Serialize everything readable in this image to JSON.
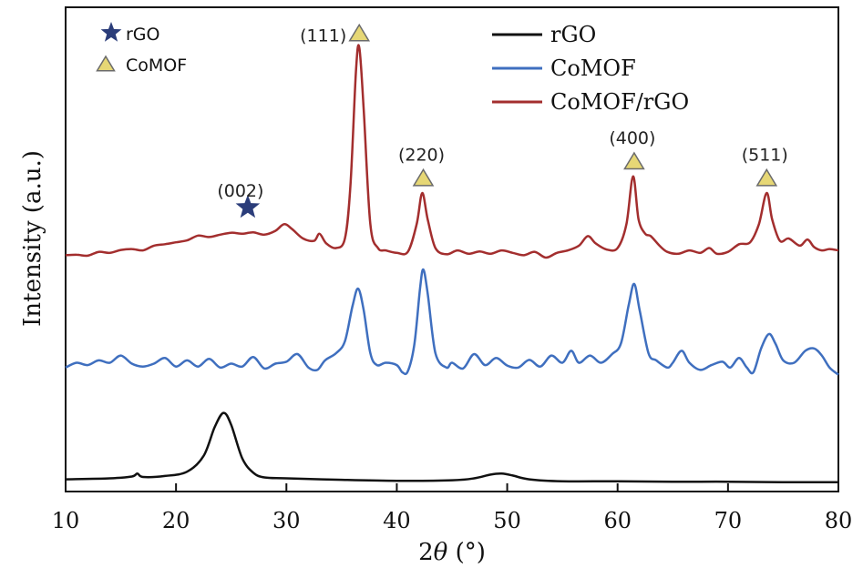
{
  "chart_data": {
    "type": "line",
    "title": "",
    "xlabel_prefix": "2",
    "xlabel_theta": "θ",
    "xlabel_suffix": " (°)",
    "ylabel": "Intensity (a.u.)",
    "xlim": [
      10,
      80
    ],
    "ylim": [
      0,
      100
    ],
    "x_ticks": [
      10,
      20,
      30,
      40,
      50,
      60,
      70,
      80
    ],
    "series": [
      {
        "name": "rGO",
        "color": "#111111",
        "points": [
          [
            10,
            1.6
          ],
          [
            14,
            1.8
          ],
          [
            16,
            2.2
          ],
          [
            16.5,
            2.8
          ],
          [
            17,
            2.1
          ],
          [
            19,
            2.3
          ],
          [
            21,
            3.2
          ],
          [
            22.5,
            6.5
          ],
          [
            23.5,
            12.5
          ],
          [
            24.3,
            15.5
          ],
          [
            25,
            13
          ],
          [
            26,
            6
          ],
          [
            27,
            3
          ],
          [
            28,
            2
          ],
          [
            30,
            1.8
          ],
          [
            35,
            1.5
          ],
          [
            40,
            1.3
          ],
          [
            45,
            1.4
          ],
          [
            47,
            1.8
          ],
          [
            48.5,
            2.6
          ],
          [
            49.5,
            2.8
          ],
          [
            50.5,
            2.4
          ],
          [
            52,
            1.6
          ],
          [
            55,
            1.2
          ],
          [
            60,
            1.2
          ],
          [
            65,
            1.1
          ],
          [
            70,
            1.1
          ],
          [
            75,
            1.0
          ],
          [
            80,
            1.0
          ]
        ]
      },
      {
        "name": "CoMOF",
        "color": "#3f6fbf",
        "points": [
          [
            10,
            25
          ],
          [
            11,
            26
          ],
          [
            12,
            25.5
          ],
          [
            13,
            26.5
          ],
          [
            14,
            26
          ],
          [
            15,
            27.5
          ],
          [
            16,
            25.8
          ],
          [
            17,
            25.2
          ],
          [
            18,
            25.8
          ],
          [
            19,
            27
          ],
          [
            20,
            25.2
          ],
          [
            21,
            26.5
          ],
          [
            22,
            25.2
          ],
          [
            23,
            26.8
          ],
          [
            24,
            25
          ],
          [
            25,
            25.8
          ],
          [
            26,
            25.2
          ],
          [
            27,
            27.2
          ],
          [
            28,
            24.8
          ],
          [
            29,
            25.8
          ],
          [
            30,
            26.2
          ],
          [
            31,
            27.8
          ],
          [
            32,
            25
          ],
          [
            32.8,
            24.5
          ],
          [
            33.5,
            26.5
          ],
          [
            34.5,
            28
          ],
          [
            35.3,
            30.5
          ],
          [
            36,
            38
          ],
          [
            36.5,
            41.5
          ],
          [
            37,
            37
          ],
          [
            37.6,
            28
          ],
          [
            38.2,
            25.5
          ],
          [
            39,
            26
          ],
          [
            40,
            25.5
          ],
          [
            40.5,
            24
          ],
          [
            41,
            24.2
          ],
          [
            41.6,
            30
          ],
          [
            42.1,
            41.5
          ],
          [
            42.4,
            45.5
          ],
          [
            42.8,
            40.5
          ],
          [
            43.5,
            28
          ],
          [
            44.5,
            25
          ],
          [
            45,
            26
          ],
          [
            46,
            24.8
          ],
          [
            47,
            27.8
          ],
          [
            48,
            25.5
          ],
          [
            49,
            27
          ],
          [
            50,
            25.4
          ],
          [
            51,
            25
          ],
          [
            52,
            26.6
          ],
          [
            53,
            25.2
          ],
          [
            54,
            27.5
          ],
          [
            55,
            26
          ],
          [
            55.8,
            28.5
          ],
          [
            56.5,
            26
          ],
          [
            57.5,
            27.5
          ],
          [
            58.5,
            26
          ],
          [
            59.5,
            27.8
          ],
          [
            60.3,
            30
          ],
          [
            61,
            38
          ],
          [
            61.5,
            42.5
          ],
          [
            62,
            37
          ],
          [
            62.8,
            28
          ],
          [
            63.5,
            26.5
          ],
          [
            64.5,
            25
          ],
          [
            65,
            26
          ],
          [
            65.8,
            28.5
          ],
          [
            66.5,
            26
          ],
          [
            67.5,
            24.5
          ],
          [
            68.5,
            25.5
          ],
          [
            69.5,
            26.2
          ],
          [
            70.2,
            25
          ],
          [
            71,
            27
          ],
          [
            71.7,
            25
          ],
          [
            72.3,
            24
          ],
          [
            73,
            29
          ],
          [
            73.7,
            32
          ],
          [
            74.3,
            30
          ],
          [
            75,
            26.5
          ],
          [
            76,
            26
          ],
          [
            77,
            28.5
          ],
          [
            77.8,
            29
          ],
          [
            78.5,
            27.5
          ],
          [
            79.2,
            25
          ],
          [
            80,
            23.5
          ]
        ]
      },
      {
        "name": "CoMOF/rGO",
        "color": "#a32e2e",
        "points": [
          [
            10,
            48.5
          ],
          [
            11,
            48.6
          ],
          [
            12,
            48.4
          ],
          [
            13,
            49.2
          ],
          [
            14,
            49
          ],
          [
            15,
            49.6
          ],
          [
            16,
            49.8
          ],
          [
            17,
            49.5
          ],
          [
            18,
            50.5
          ],
          [
            19,
            50.8
          ],
          [
            20,
            51.2
          ],
          [
            21,
            51.6
          ],
          [
            22,
            52.6
          ],
          [
            23,
            52.3
          ],
          [
            24,
            52.8
          ],
          [
            25,
            53.2
          ],
          [
            26,
            53
          ],
          [
            27,
            53.3
          ],
          [
            28,
            52.8
          ],
          [
            29,
            53.6
          ],
          [
            29.8,
            55
          ],
          [
            30.5,
            54
          ],
          [
            31.5,
            52
          ],
          [
            32.5,
            51.5
          ],
          [
            33,
            53
          ],
          [
            33.6,
            51
          ],
          [
            34.5,
            50
          ],
          [
            35.3,
            52
          ],
          [
            35.8,
            63
          ],
          [
            36.3,
            87
          ],
          [
            36.6,
            92
          ],
          [
            37,
            79
          ],
          [
            37.6,
            55
          ],
          [
            38.3,
            50
          ],
          [
            39,
            49.5
          ],
          [
            40,
            49
          ],
          [
            41,
            49.2
          ],
          [
            41.8,
            55
          ],
          [
            42.3,
            61.5
          ],
          [
            42.8,
            56
          ],
          [
            43.5,
            50
          ],
          [
            44.5,
            48.7
          ],
          [
            45.5,
            49.5
          ],
          [
            46.5,
            48.8
          ],
          [
            47.5,
            49.3
          ],
          [
            48.5,
            48.8
          ],
          [
            49.5,
            49.5
          ],
          [
            50.5,
            49
          ],
          [
            51.5,
            48.5
          ],
          [
            52.5,
            49.2
          ],
          [
            53.5,
            48
          ],
          [
            54.5,
            49
          ],
          [
            55.5,
            49.5
          ],
          [
            56.5,
            50.5
          ],
          [
            57.3,
            52.5
          ],
          [
            58,
            51
          ],
          [
            59,
            49.7
          ],
          [
            60,
            50
          ],
          [
            60.8,
            55
          ],
          [
            61.4,
            65
          ],
          [
            61.9,
            56
          ],
          [
            62.5,
            53
          ],
          [
            63,
            52.5
          ],
          [
            63.8,
            50.5
          ],
          [
            64.5,
            49.2
          ],
          [
            65.5,
            48.8
          ],
          [
            66.5,
            49.5
          ],
          [
            67.5,
            49
          ],
          [
            68.3,
            50
          ],
          [
            69,
            48.8
          ],
          [
            70,
            49.2
          ],
          [
            71,
            50.8
          ],
          [
            72,
            51.2
          ],
          [
            72.8,
            55
          ],
          [
            73.5,
            61.5
          ],
          [
            74,
            56
          ],
          [
            74.7,
            51.5
          ],
          [
            75.5,
            52
          ],
          [
            76.5,
            50.5
          ],
          [
            77.2,
            51.8
          ],
          [
            77.8,
            50.2
          ],
          [
            78.5,
            49.5
          ],
          [
            79.2,
            49.8
          ],
          [
            80,
            49.5
          ]
        ]
      }
    ],
    "legend_series": [
      "rGO",
      "CoMOF",
      "CoMOF/rGO"
    ],
    "legend_position": "top-right",
    "marker_legend": [
      {
        "name": "rGO",
        "symbol": "star",
        "color": "#2b3d7a"
      },
      {
        "name": "CoMOF",
        "symbol": "triangle",
        "color": "#e6d775"
      }
    ],
    "peak_annotations": [
      {
        "label": "(002)",
        "x": 26.5,
        "y": 58.5,
        "marker": "star"
      },
      {
        "label": "(111)",
        "x": 36.6,
        "y": 94.8,
        "marker": "triangle"
      },
      {
        "label": "(220)",
        "x": 42.4,
        "y": 64.5,
        "marker": "triangle"
      },
      {
        "label": "(400)",
        "x": 61.5,
        "y": 68,
        "marker": "triangle"
      },
      {
        "label": "(511)",
        "x": 73.5,
        "y": 64.5,
        "marker": "triangle"
      }
    ]
  }
}
